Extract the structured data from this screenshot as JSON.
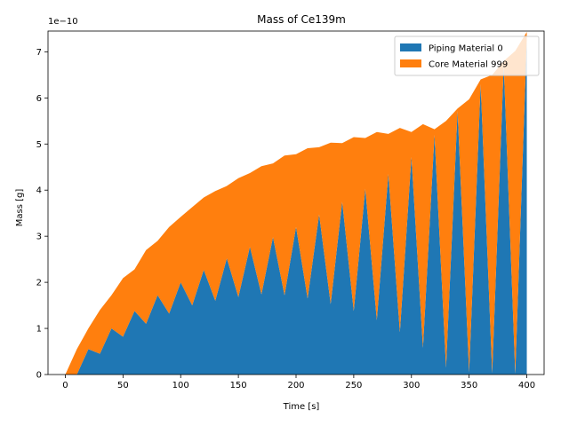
{
  "chart_data": {
    "type": "area",
    "stacked": true,
    "title": "Mass of Ce139m",
    "xlabel": "Time [s]",
    "ylabel": "Mass [g]",
    "y_scale_label": "1e−10",
    "xlim": [
      -15,
      415
    ],
    "ylim": [
      0,
      7.45
    ],
    "xticks": [
      0,
      50,
      100,
      150,
      200,
      250,
      300,
      350,
      400
    ],
    "yticks": [
      0,
      1,
      2,
      3,
      4,
      5,
      6,
      7
    ],
    "grid": false,
    "legend_position": "top-right",
    "x": [
      0,
      10,
      20,
      30,
      40,
      50,
      60,
      70,
      80,
      90,
      100,
      110,
      120,
      130,
      140,
      150,
      160,
      170,
      180,
      190,
      200,
      210,
      220,
      230,
      240,
      250,
      260,
      270,
      280,
      290,
      300,
      310,
      320,
      330,
      340,
      350,
      360,
      370,
      380,
      390,
      400
    ],
    "series": [
      {
        "name": "Piping Material 0",
        "color": "#1f77b4",
        "values": [
          0,
          0.0,
          0.55,
          0.45,
          1.0,
          0.82,
          1.38,
          1.1,
          1.72,
          1.32,
          2.0,
          1.5,
          2.27,
          1.6,
          2.52,
          1.68,
          2.77,
          1.74,
          2.98,
          1.72,
          3.2,
          1.65,
          3.47,
          1.53,
          3.75,
          1.38,
          4.03,
          1.18,
          4.35,
          0.92,
          4.72,
          0.58,
          5.2,
          0.15,
          5.72,
          0.05,
          6.3,
          0.03,
          6.72,
          0.02,
          7.3
        ]
      },
      {
        "name": "Core Material 999",
        "color": "#ff7f0e",
        "values": [
          0,
          0.55,
          0.45,
          0.95,
          0.72,
          1.27,
          0.9,
          1.6,
          1.18,
          1.88,
          1.42,
          2.13,
          1.57,
          2.38,
          1.57,
          2.58,
          1.6,
          2.78,
          1.6,
          3.03,
          1.58,
          3.26,
          1.46,
          3.5,
          1.27,
          3.77,
          1.1,
          4.08,
          0.87,
          4.43,
          0.54,
          4.85,
          0.12,
          5.35,
          0.05,
          5.92,
          0.1,
          6.47,
          0.08,
          7.0,
          0.13
        ]
      }
    ]
  }
}
